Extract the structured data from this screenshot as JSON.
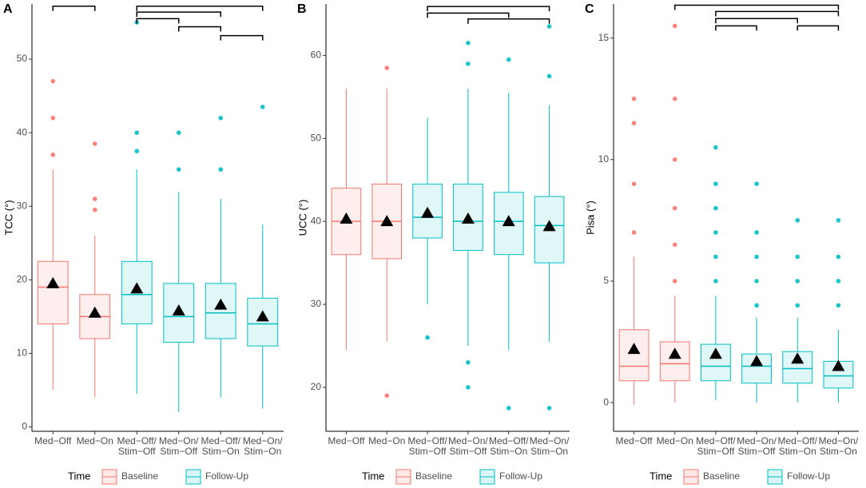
{
  "chart_data": [
    {
      "type": "box",
      "label": "A",
      "ylabel": "TCC (°)",
      "ylim": [
        -0.6,
        57.5
      ],
      "yticks": [
        0,
        10,
        20,
        30,
        40,
        50
      ],
      "categories": [
        "Med−Off",
        "Med−On",
        "Med−Off/\nStim−Off",
        "Med−On/\nStim−Off",
        "Med−Off/\nStim−On",
        "Med−On/\nStim−On"
      ],
      "colors": [
        "#F8766D",
        "#F8766D",
        "#00BFC4",
        "#00BFC4",
        "#00BFC4",
        "#00BFC4"
      ],
      "boxes": [
        {
          "whislo": 5,
          "q1": 14,
          "med": 19,
          "q3": 22.5,
          "whishi": 35,
          "mean": 19.5,
          "fliers": [
            37,
            42,
            47
          ]
        },
        {
          "whislo": 4,
          "q1": 12,
          "med": 15,
          "q3": 18,
          "whishi": 26,
          "mean": 15.5,
          "fliers": [
            29.5,
            31,
            38.5
          ]
        },
        {
          "whislo": 4.5,
          "q1": 14,
          "med": 18,
          "q3": 22.5,
          "whishi": 35,
          "mean": 18.8,
          "fliers": [
            37.5,
            40,
            55
          ]
        },
        {
          "whislo": 2,
          "q1": 11.5,
          "med": 15,
          "q3": 19.5,
          "whishi": 32,
          "mean": 15.8,
          "fliers": [
            35,
            40
          ]
        },
        {
          "whislo": 4,
          "q1": 12,
          "med": 15.5,
          "q3": 19.5,
          "whishi": 31,
          "mean": 16.6,
          "fliers": [
            35,
            42
          ]
        },
        {
          "whislo": 2.5,
          "q1": 11,
          "med": 14,
          "q3": 17.5,
          "whishi": 27.5,
          "mean": 15,
          "fliers": [
            43.5
          ]
        }
      ],
      "brackets": [
        {
          "from": 0,
          "to": 1,
          "y": 57.2
        },
        {
          "from": 2,
          "to": 5,
          "y": 57.2
        },
        {
          "from": 2,
          "to": 4,
          "y": 56.4
        },
        {
          "from": 2,
          "to": 3,
          "y": 55.5
        },
        {
          "from": 3,
          "to": 4,
          "y": 54.4
        },
        {
          "from": 4,
          "to": 5,
          "y": 53.2
        }
      ],
      "legend": {
        "title": "Time",
        "entries": [
          {
            "name": "Baseline",
            "color": "#F8766D"
          },
          {
            "name": "Follow-Up",
            "color": "#00BFC4"
          }
        ]
      }
    },
    {
      "type": "box",
      "label": "B",
      "ylabel": "UCC (°)",
      "ylim": [
        14.7,
        66.2
      ],
      "yticks": [
        20,
        30,
        40,
        50,
        60
      ],
      "categories": [
        "Med−Off",
        "Med−On",
        "Med−Off/\nStim−Off",
        "Med−On/\nStim−Off",
        "Med−Off/\nStim−On",
        "Med−On/\nStim−On"
      ],
      "colors": [
        "#F8766D",
        "#F8766D",
        "#00BFC4",
        "#00BFC4",
        "#00BFC4",
        "#00BFC4"
      ],
      "boxes": [
        {
          "whislo": 24.5,
          "q1": 36,
          "med": 40,
          "q3": 44,
          "whishi": 56,
          "mean": 40.3,
          "fliers": []
        },
        {
          "whislo": 25.5,
          "q1": 35.5,
          "med": 40,
          "q3": 44.5,
          "whishi": 56,
          "mean": 40,
          "fliers": [
            19,
            58.5
          ]
        },
        {
          "whislo": 30,
          "q1": 38,
          "med": 40.5,
          "q3": 44.5,
          "whishi": 52.5,
          "mean": 41,
          "fliers": [
            26
          ]
        },
        {
          "whislo": 25,
          "q1": 36.5,
          "med": 40,
          "q3": 44.5,
          "whishi": 56,
          "mean": 40.3,
          "fliers": [
            20,
            23,
            59,
            61.5
          ]
        },
        {
          "whislo": 24.5,
          "q1": 36,
          "med": 40,
          "q3": 43.5,
          "whishi": 55.5,
          "mean": 40,
          "fliers": [
            17.5,
            59.5
          ]
        },
        {
          "whislo": 25.5,
          "q1": 35,
          "med": 39.5,
          "q3": 43,
          "whishi": 54,
          "mean": 39.4,
          "fliers": [
            17.5,
            57.5,
            63.5
          ]
        }
      ],
      "brackets": [
        {
          "from": 2,
          "to": 5,
          "y": 65.9
        },
        {
          "from": 2,
          "to": 4,
          "y": 65.1
        },
        {
          "from": 3,
          "to": 5,
          "y": 64.4
        }
      ],
      "legend": {
        "title": "Time",
        "entries": [
          {
            "name": "Baseline",
            "color": "#F8766D"
          },
          {
            "name": "Follow-Up",
            "color": "#00BFC4"
          }
        ]
      }
    },
    {
      "type": "box",
      "label": "C",
      "ylabel": "Pisa (°)",
      "ylim": [
        -1.18,
        16.4
      ],
      "yticks": [
        0,
        5,
        10,
        15
      ],
      "categories": [
        "Med−Off",
        "Med−On",
        "Med−Off/\nStim−Off",
        "Med−On/\nStim−Off",
        "Med−Off/\nStim−On",
        "Med−On/\nStim−On"
      ],
      "colors": [
        "#F8766D",
        "#F8766D",
        "#00BFC4",
        "#00BFC4",
        "#00BFC4",
        "#00BFC4"
      ],
      "boxes": [
        {
          "whislo": -0.1,
          "q1": 0.9,
          "med": 1.5,
          "q3": 3,
          "whishi": 6,
          "mean": 2.2,
          "fliers": [
            7,
            9,
            11.5,
            12.5
          ]
        },
        {
          "whislo": 0,
          "q1": 0.9,
          "med": 1.6,
          "q3": 2.5,
          "whishi": 4.4,
          "mean": 2,
          "fliers": [
            5,
            6.5,
            8,
            10,
            12.5,
            15.5
          ]
        },
        {
          "whislo": 0.1,
          "q1": 0.9,
          "med": 1.5,
          "q3": 2.4,
          "whishi": 4.4,
          "mean": 2,
          "fliers": [
            5,
            6,
            7,
            8,
            9,
            10.5
          ]
        },
        {
          "whislo": 0,
          "q1": 0.8,
          "med": 1.5,
          "q3": 2,
          "whishi": 3.5,
          "mean": 1.7,
          "fliers": [
            4,
            5,
            6,
            7,
            9
          ]
        },
        {
          "whislo": 0,
          "q1": 0.8,
          "med": 1.4,
          "q3": 2.1,
          "whishi": 3.5,
          "mean": 1.8,
          "fliers": [
            4,
            5,
            6,
            7.5
          ]
        },
        {
          "whislo": 0,
          "q1": 0.6,
          "med": 1.1,
          "q3": 1.7,
          "whishi": 3,
          "mean": 1.5,
          "fliers": [
            4,
            5,
            6,
            7.5
          ]
        }
      ],
      "brackets": [
        {
          "from": 1,
          "to": 5,
          "y": 16.35
        },
        {
          "from": 2,
          "to": 5,
          "y": 16.09
        },
        {
          "from": 2,
          "to": 4,
          "y": 15.8
        },
        {
          "from": 2,
          "to": 3,
          "y": 15.5
        },
        {
          "from": 4,
          "to": 5,
          "y": 15.5
        }
      ],
      "legend": {
        "title": "Time",
        "entries": [
          {
            "name": "Baseline",
            "color": "#F8766D"
          },
          {
            "name": "Follow-Up",
            "color": "#00BFC4"
          }
        ]
      }
    }
  ]
}
